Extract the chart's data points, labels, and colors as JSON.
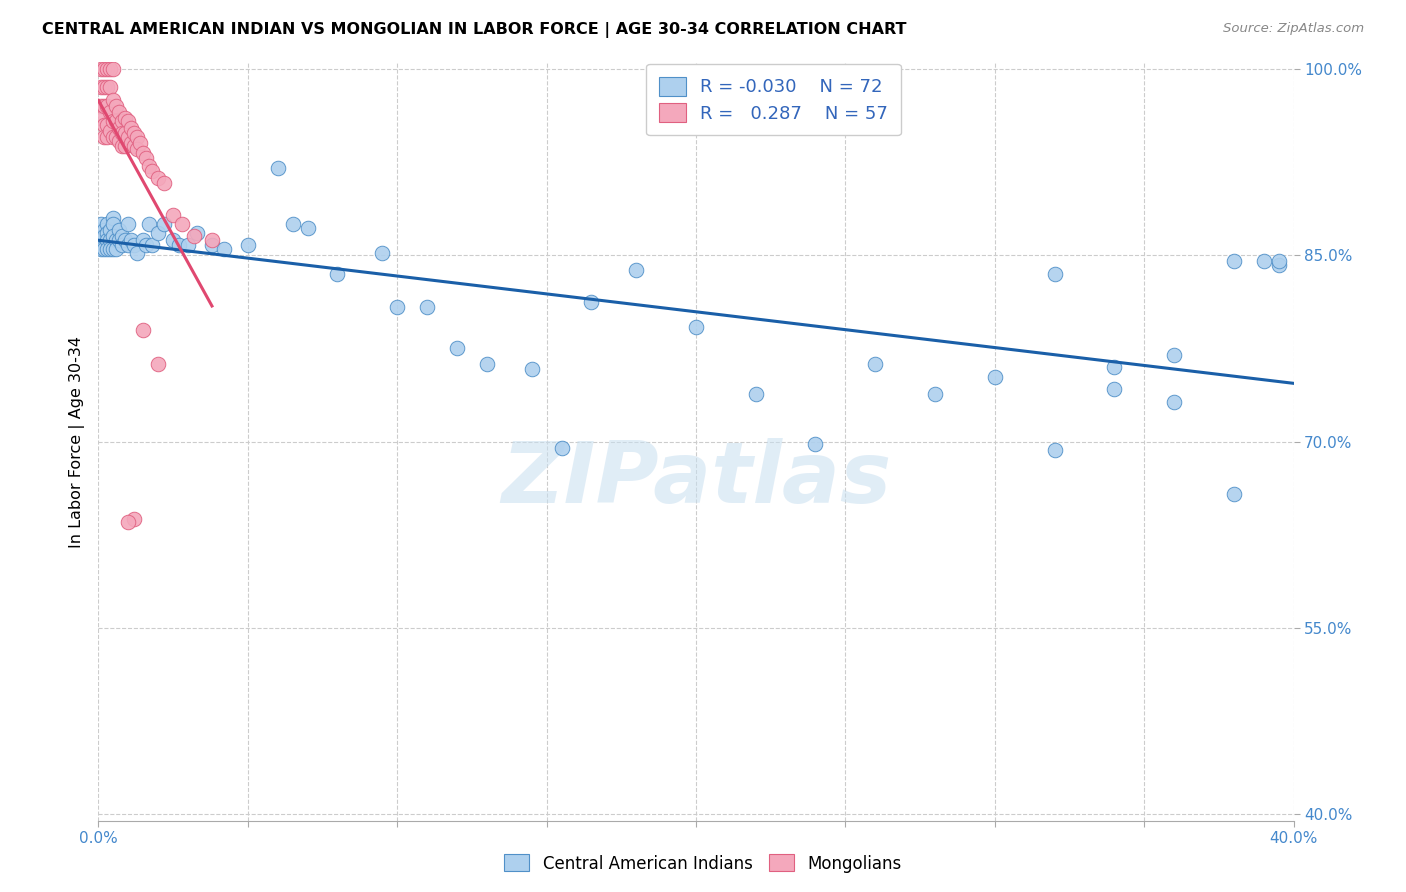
{
  "title": "CENTRAL AMERICAN INDIAN VS MONGOLIAN IN LABOR FORCE | AGE 30-34 CORRELATION CHART",
  "source": "Source: ZipAtlas.com",
  "ylabel": "In Labor Force | Age 30-34",
  "xlim": [
    0.0,
    0.4
  ],
  "ylim": [
    0.395,
    1.005
  ],
  "xticks": [
    0.0,
    0.05,
    0.1,
    0.15,
    0.2,
    0.25,
    0.3,
    0.35,
    0.4
  ],
  "xticklabels": [
    "0.0%",
    "",
    "",
    "",
    "",
    "",
    "",
    "",
    "40.0%"
  ],
  "yticks": [
    0.4,
    0.55,
    0.7,
    0.85,
    1.0
  ],
  "yticklabels": [
    "40.0%",
    "55.0%",
    "70.0%",
    "85.0%",
    "100.0%"
  ],
  "blue_color": "#aed0ee",
  "pink_color": "#f4a8bc",
  "blue_edge": "#5090c8",
  "pink_edge": "#e06080",
  "blue_line_color": "#1a5fa8",
  "pink_line_color": "#e04870",
  "watermark_text": "ZIPatlas",
  "legend1_label": "Central American Indians",
  "legend2_label": "Mongolians",
  "blue_x": [
    0.001,
    0.001,
    0.001,
    0.002,
    0.002,
    0.002,
    0.003,
    0.003,
    0.003,
    0.003,
    0.004,
    0.004,
    0.004,
    0.005,
    0.005,
    0.005,
    0.005,
    0.006,
    0.006,
    0.007,
    0.007,
    0.008,
    0.008,
    0.009,
    0.01,
    0.01,
    0.011,
    0.012,
    0.013,
    0.015,
    0.016,
    0.017,
    0.018,
    0.02,
    0.022,
    0.025,
    0.027,
    0.03,
    0.033,
    0.038,
    0.042,
    0.05,
    0.06,
    0.065,
    0.07,
    0.08,
    0.095,
    0.1,
    0.11,
    0.12,
    0.13,
    0.145,
    0.155,
    0.165,
    0.18,
    0.2,
    0.22,
    0.24,
    0.26,
    0.28,
    0.3,
    0.32,
    0.34,
    0.36,
    0.38,
    0.395,
    0.32,
    0.34,
    0.36,
    0.38,
    0.39,
    0.395
  ],
  "blue_y": [
    0.875,
    0.86,
    0.855,
    0.87,
    0.865,
    0.855,
    0.875,
    0.868,
    0.862,
    0.855,
    0.87,
    0.862,
    0.855,
    0.88,
    0.875,
    0.865,
    0.855,
    0.862,
    0.855,
    0.87,
    0.862,
    0.865,
    0.858,
    0.862,
    0.875,
    0.858,
    0.862,
    0.858,
    0.852,
    0.862,
    0.858,
    0.875,
    0.858,
    0.868,
    0.875,
    0.862,
    0.858,
    0.858,
    0.868,
    0.858,
    0.855,
    0.858,
    0.92,
    0.875,
    0.872,
    0.835,
    0.852,
    0.808,
    0.808,
    0.775,
    0.762,
    0.758,
    0.695,
    0.812,
    0.838,
    0.792,
    0.738,
    0.698,
    0.762,
    0.738,
    0.752,
    0.693,
    0.742,
    0.732,
    0.658,
    0.842,
    0.835,
    0.76,
    0.77,
    0.845,
    0.845,
    0.845
  ],
  "pink_x": [
    0.001,
    0.001,
    0.001,
    0.001,
    0.002,
    0.002,
    0.002,
    0.002,
    0.002,
    0.003,
    0.003,
    0.003,
    0.003,
    0.003,
    0.004,
    0.004,
    0.004,
    0.004,
    0.005,
    0.005,
    0.005,
    0.005,
    0.006,
    0.006,
    0.006,
    0.007,
    0.007,
    0.007,
    0.008,
    0.008,
    0.008,
    0.009,
    0.009,
    0.009,
    0.01,
    0.01,
    0.011,
    0.011,
    0.012,
    0.012,
    0.013,
    0.013,
    0.014,
    0.015,
    0.016,
    0.017,
    0.018,
    0.02,
    0.022,
    0.025,
    0.028,
    0.032,
    0.038,
    0.012,
    0.015,
    0.02,
    0.01
  ],
  "pink_y": [
    1.0,
    0.985,
    0.97,
    0.96,
    1.0,
    0.985,
    0.97,
    0.955,
    0.945,
    1.0,
    0.985,
    0.97,
    0.955,
    0.945,
    1.0,
    0.985,
    0.965,
    0.95,
    1.0,
    0.975,
    0.958,
    0.945,
    0.97,
    0.958,
    0.945,
    0.965,
    0.952,
    0.942,
    0.958,
    0.948,
    0.938,
    0.96,
    0.948,
    0.938,
    0.958,
    0.945,
    0.952,
    0.94,
    0.948,
    0.938,
    0.945,
    0.935,
    0.94,
    0.932,
    0.928,
    0.922,
    0.918,
    0.912,
    0.908,
    0.882,
    0.875,
    0.865,
    0.862,
    0.638,
    0.79,
    0.762,
    0.635
  ]
}
